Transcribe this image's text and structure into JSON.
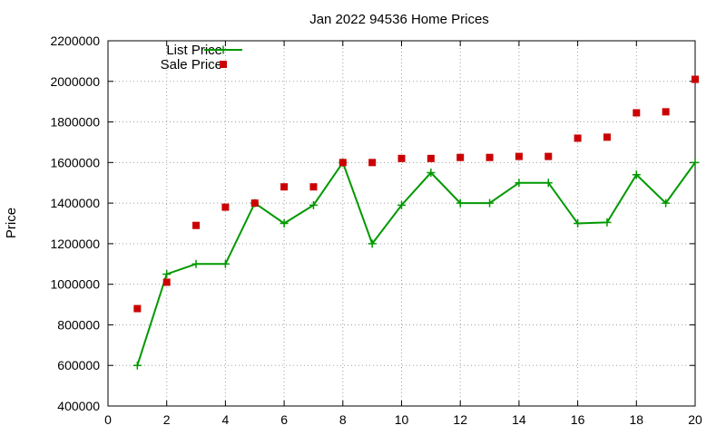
{
  "chart_data": {
    "type": "line",
    "title": "Jan 2022 94536 Home Prices",
    "xlabel": "",
    "ylabel": "Price",
    "xlim": [
      0,
      20
    ],
    "ylim": [
      400000,
      2200000
    ],
    "x_ticks": [
      0,
      2,
      4,
      6,
      8,
      10,
      12,
      14,
      16,
      18,
      20
    ],
    "y_ticks": [
      400000,
      600000,
      800000,
      1000000,
      1200000,
      1400000,
      1600000,
      1800000,
      2000000,
      2200000
    ],
    "grid": true,
    "legend_position": "top-left",
    "series": [
      {
        "name": "List Price",
        "style": "line-with-plus-markers",
        "color": "#009900",
        "x": [
          1,
          2,
          3,
          4,
          5,
          6,
          7,
          8,
          9,
          10,
          11,
          12,
          13,
          14,
          15,
          16,
          17,
          18,
          19,
          20
        ],
        "y": [
          600000,
          1050000,
          1100000,
          1100000,
          1400000,
          1300000,
          1390000,
          1600000,
          1200000,
          1390000,
          1550000,
          1400000,
          1400000,
          1500000,
          1500000,
          1300000,
          1305000,
          1540000,
          1400000,
          1600000
        ]
      },
      {
        "name": "Sale Price",
        "style": "square-markers",
        "color": "#cc0000",
        "x": [
          1,
          2,
          3,
          4,
          5,
          6,
          7,
          8,
          9,
          10,
          11,
          12,
          13,
          14,
          15,
          16,
          17,
          18,
          19,
          20
        ],
        "y": [
          880000,
          1010000,
          1290000,
          1380000,
          1400000,
          1480000,
          1480000,
          1600000,
          1600000,
          1620000,
          1620000,
          1625000,
          1625000,
          1630000,
          1630000,
          1720000,
          1725000,
          1845000,
          1850000,
          2010000
        ]
      }
    ]
  }
}
